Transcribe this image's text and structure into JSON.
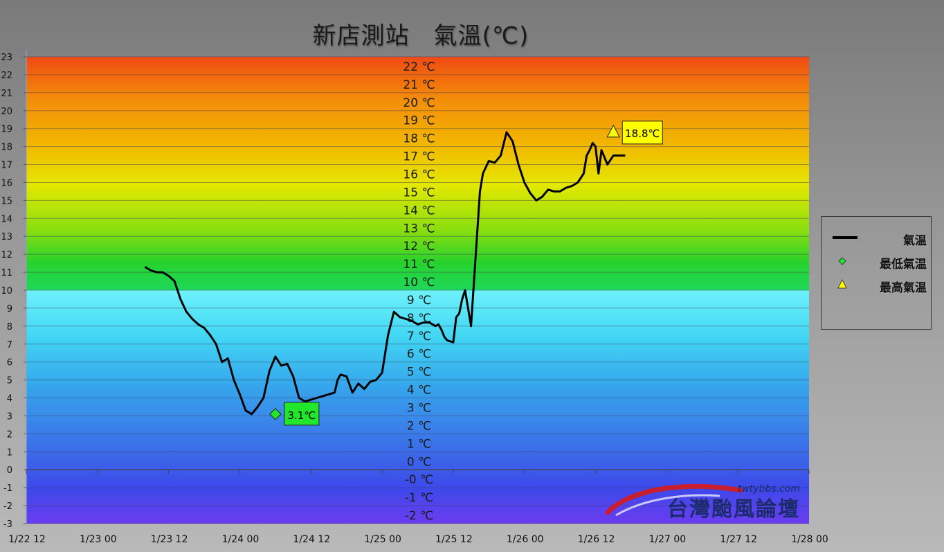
{
  "chart_data": {
    "type": "line",
    "title": "新店測站　氣溫(℃)",
    "xlabel": "",
    "ylabel": "",
    "ylim": [
      -3,
      23
    ],
    "y_ticks": [
      23,
      22,
      21,
      20,
      19,
      18,
      17,
      16,
      15,
      14,
      13,
      12,
      11,
      10,
      9,
      8,
      7,
      6,
      5,
      4,
      3,
      2,
      1,
      0,
      -1,
      -2,
      -3
    ],
    "x_ticks": [
      "1/22 12",
      "1/23 00",
      "1/23 12",
      "1/24 00",
      "1/24 12",
      "1/25 00",
      "1/25 12",
      "1/26 00",
      "1/26 12",
      "1/27 00",
      "1/27 12",
      "1/28 00"
    ],
    "band_labels": [
      "22 ℃",
      "21 ℃",
      "20 ℃",
      "19 ℃",
      "18 ℃",
      "17 ℃",
      "16 ℃",
      "15 ℃",
      "14 ℃",
      "13 ℃",
      "12 ℃",
      "11 ℃",
      "10 ℃",
      "9 ℃",
      "8 ℃",
      "7 ℃",
      "6 ℃",
      "5 ℃",
      "4 ℃",
      "3 ℃",
      "2 ℃",
      "1 ℃",
      "0 ℃",
      "-0 ℃",
      "-1 ℃",
      "-2 ℃"
    ],
    "grid": true,
    "legend_position": "right",
    "series": [
      {
        "name": "氣溫",
        "color": "#000000",
        "x_hours_since_1/22 12": [
          20,
          21,
          22,
          23,
          24,
          25,
          26,
          27,
          28,
          29,
          30,
          31,
          32,
          33,
          34,
          35,
          36,
          37,
          38,
          39,
          40,
          41,
          42,
          43,
          44,
          45,
          46,
          46.5,
          47,
          48,
          49,
          50,
          51,
          52,
          52.5,
          53,
          54,
          55,
          56,
          57,
          58,
          59,
          60,
          61,
          62,
          63,
          64,
          65,
          66,
          67,
          68,
          68.5,
          69,
          69.5,
          70,
          70.5,
          71,
          72,
          72.5,
          73,
          73.5,
          74,
          75,
          76,
          76.5,
          77,
          78,
          79,
          80,
          81,
          82,
          83,
          84,
          85,
          86,
          87,
          88,
          89,
          90,
          91,
          92,
          93,
          94,
          94.5,
          95,
          95.5,
          96,
          96.5,
          97,
          98,
          99,
          100,
          101,
          102,
          103,
          104,
          105,
          106,
          107,
          108,
          109,
          110,
          111,
          112,
          113,
          114,
          115,
          116,
          116.5,
          117,
          117.5,
          118,
          119,
          120,
          121,
          122,
          123,
          123.5,
          124
        ],
        "values": [
          11.3,
          11.1,
          11.0,
          11.0,
          10.8,
          10.5,
          9.5,
          8.8,
          8.4,
          8.1,
          7.9,
          7.5,
          7.0,
          6.0,
          6.2,
          5.0,
          4.2,
          3.3,
          3.1,
          3.5,
          4.0,
          5.5,
          6.3,
          5.8,
          5.9,
          5.2,
          4.0,
          3.9,
          3.8,
          3.9,
          4.0,
          4.1,
          4.2,
          4.3,
          5.0,
          5.3,
          5.2,
          4.3,
          4.8,
          4.5,
          4.9,
          5.0,
          5.4,
          7.5,
          8.8,
          8.5,
          8.4,
          8.3,
          8.1,
          8.2,
          8.2,
          8.1,
          8.0,
          8.1,
          7.8,
          7.4,
          7.2,
          7.1,
          8.5,
          8.7,
          9.5,
          10.0,
          8.0,
          13.0,
          15.5,
          16.5,
          17.2,
          17.1,
          17.5,
          18.8,
          18.3,
          17.0,
          16.0,
          15.4,
          15.0,
          15.2,
          15.6,
          15.5,
          15.5,
          15.7,
          15.8,
          16.0,
          16.5,
          17.5,
          17.8,
          18.2,
          18.0,
          16.5,
          17.8,
          17.0,
          17.5,
          17.5,
          17.5,
          17.5,
          17.5,
          17.5,
          17.5,
          17.5,
          17.5,
          17.5,
          17.5,
          17.5,
          17.5,
          17.5,
          17.5,
          17.5,
          17.5,
          17.5,
          17.5,
          17.5,
          17.5,
          17.5,
          17.5,
          17.5,
          17.5,
          17.5,
          17.5,
          17.5,
          17.5,
          17.5,
          17.5,
          17.5
        ]
      },
      {
        "name": "最低氣温",
        "color": "#22e62b",
        "marker": "diamond",
        "x_label": "1/24 06",
        "value": 3.1,
        "label": "3.1℃"
      },
      {
        "name": "最高氣温",
        "color": "#ffff00",
        "marker": "triangle",
        "x_label": "1/26 15",
        "value": 18.8,
        "label": "18.8℃"
      }
    ]
  },
  "legend": {
    "items": [
      {
        "label": "氣温",
        "symbol": "line"
      },
      {
        "label": "最低氣温",
        "symbol": "diamond"
      },
      {
        "label": "最高氣温",
        "symbol": "triangle"
      }
    ]
  },
  "watermark": {
    "site": "twtybbs.com",
    "name": "台灣颱風論壇"
  }
}
